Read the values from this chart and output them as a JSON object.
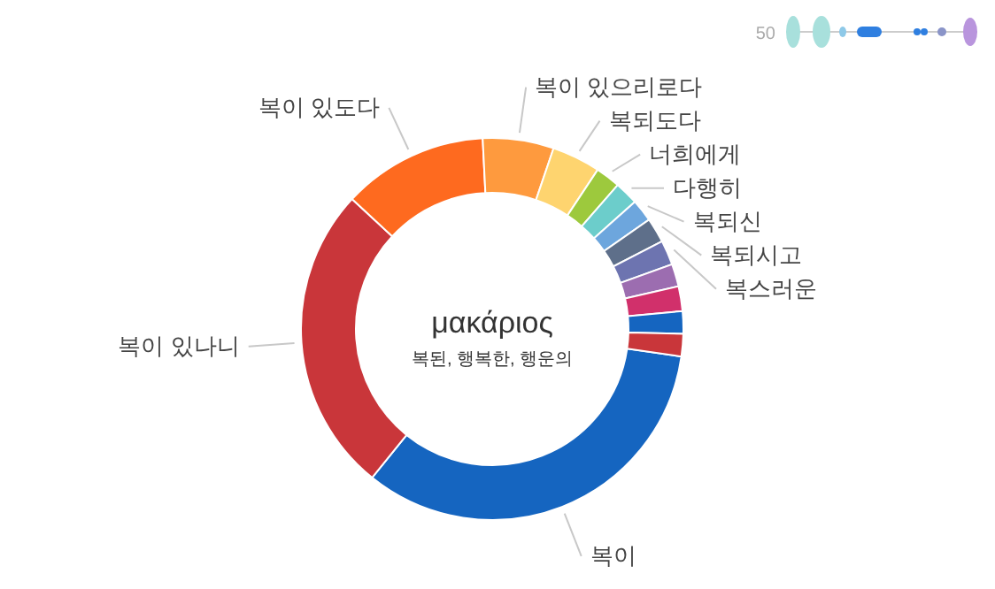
{
  "chart_data": {
    "type": "donut",
    "title": "μακάριος",
    "subtitle": "복된, 행복한, 행운의",
    "categories": [
      "복이",
      "복이 있나니",
      "복이 있도다",
      "복이 있으리로다",
      "복되도다",
      "너희에게",
      "다행히",
      "복되신",
      "복되시고",
      "복스러운",
      null,
      null,
      null,
      null
    ],
    "values": [
      33.5,
      26.1,
      12.3,
      6.0,
      4.1,
      2.1,
      2.0,
      1.9,
      2.1,
      2.1,
      1.9,
      2.1,
      1.9,
      1.9
    ],
    "colors": [
      "#1565c0",
      "#c9363a",
      "#fe6a1f",
      "#fe9a3e",
      "#fed46f",
      "#9dc93d",
      "#6ccdcb",
      "#6da6dd",
      "#5e6f8a",
      "#6d74b0",
      "#9c6db0",
      "#d1306b",
      "#1565c0",
      "#c9363a"
    ],
    "annotations": [
      "50"
    ]
  }
}
